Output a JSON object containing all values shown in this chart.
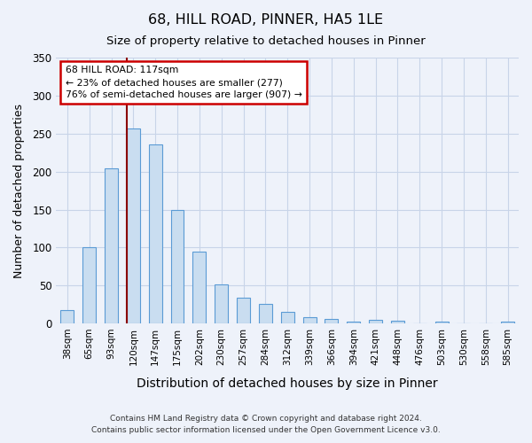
{
  "title": "68, HILL ROAD, PINNER, HA5 1LE",
  "subtitle": "Size of property relative to detached houses in Pinner",
  "xlabel": "Distribution of detached houses by size in Pinner",
  "ylabel": "Number of detached properties",
  "bin_labels": [
    "38sqm",
    "65sqm",
    "93sqm",
    "120sqm",
    "147sqm",
    "175sqm",
    "202sqm",
    "230sqm",
    "257sqm",
    "284sqm",
    "312sqm",
    "339sqm",
    "366sqm",
    "394sqm",
    "421sqm",
    "448sqm",
    "476sqm",
    "503sqm",
    "530sqm",
    "558sqm",
    "585sqm"
  ],
  "bar_values": [
    18,
    100,
    204,
    257,
    236,
    149,
    95,
    52,
    34,
    26,
    15,
    8,
    6,
    3,
    5,
    4,
    0,
    2,
    0,
    0,
    2
  ],
  "bar_color": "#c9ddf0",
  "bar_edge_color": "#5b9bd5",
  "vline_color": "#8b0000",
  "annotation_box_text": "68 HILL ROAD: 117sqm\n← 23% of detached houses are smaller (277)\n76% of semi-detached houses are larger (907) →",
  "annotation_box_border_color": "#cc0000",
  "ylim": [
    0,
    350
  ],
  "yticks": [
    0,
    50,
    100,
    150,
    200,
    250,
    300,
    350
  ],
  "bg_color": "#eef2fa",
  "grid_color": "#c8d4e8",
  "footer_line1": "Contains HM Land Registry data © Crown copyright and database right 2024.",
  "footer_line2": "Contains public sector information licensed under the Open Government Licence v3.0."
}
